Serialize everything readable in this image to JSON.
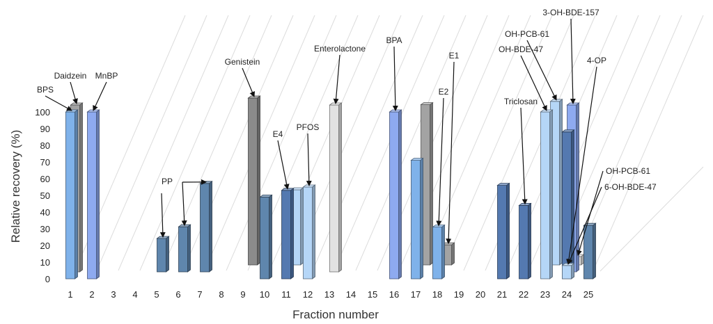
{
  "chart_data": {
    "type": "bar",
    "style": "3d-columns-staggered-depth",
    "xlabel": "Fraction number",
    "ylabel": "Relative recovery (%)",
    "ylim": [
      0,
      100
    ],
    "yticks": [
      0,
      10,
      20,
      30,
      40,
      50,
      60,
      70,
      80,
      90,
      100
    ],
    "categories": [
      "1",
      "2",
      "3",
      "4",
      "5",
      "6",
      "7",
      "8",
      "9",
      "10",
      "11",
      "12",
      "13",
      "14",
      "15",
      "16",
      "17",
      "18",
      "19",
      "20",
      "21",
      "22",
      "23",
      "24",
      "25"
    ],
    "grid": true,
    "colors": {
      "blue": "#7fb2ea",
      "darkblue": "#5479b0",
      "steel": "#5f86ad",
      "periwinkle": "#8eaaf0",
      "lightblue": "#b5d6f7",
      "gray": "#a3a3a3",
      "darkgray": "#8b8b8b",
      "lightgray": "#e2e2e2"
    },
    "bars": [
      {
        "fraction": 1,
        "depth": 0,
        "value": 100,
        "color": "blue"
      },
      {
        "fraction": 1,
        "depth": 1,
        "value": 100,
        "color": "gray"
      },
      {
        "fraction": 2,
        "depth": 0,
        "value": 100,
        "color": "periwinkle"
      },
      {
        "fraction": 5,
        "depth": 1,
        "value": 20,
        "color": "steel"
      },
      {
        "fraction": 6,
        "depth": 1,
        "value": 27,
        "color": "steel"
      },
      {
        "fraction": 7,
        "depth": 1,
        "value": 53,
        "color": "steel"
      },
      {
        "fraction": 9,
        "depth": 2,
        "value": 100,
        "color": "darkgray"
      },
      {
        "fraction": 10,
        "depth": 0,
        "value": 49,
        "color": "steel"
      },
      {
        "fraction": 11,
        "depth": 0,
        "value": 53,
        "color": "darkblue"
      },
      {
        "fraction": 11,
        "depth": 2,
        "value": 45,
        "color": "lightblue"
      },
      {
        "fraction": 12,
        "depth": 0,
        "value": 55,
        "color": "lightblue"
      },
      {
        "fraction": 13,
        "depth": 1,
        "value": 100,
        "color": "lightgray"
      },
      {
        "fraction": 16,
        "depth": 0,
        "value": 100,
        "color": "periwinkle"
      },
      {
        "fraction": 17,
        "depth": 0,
        "value": 71,
        "color": "blue"
      },
      {
        "fraction": 17,
        "depth": 2,
        "value": 96,
        "color": "gray"
      },
      {
        "fraction": 18,
        "depth": 0,
        "value": 31,
        "color": "blue"
      },
      {
        "fraction": 18,
        "depth": 2,
        "value": 12,
        "color": "gray"
      },
      {
        "fraction": 21,
        "depth": 0,
        "value": 56,
        "color": "darkblue"
      },
      {
        "fraction": 22,
        "depth": 0,
        "value": 44,
        "color": "darkblue"
      },
      {
        "fraction": 23,
        "depth": 0,
        "value": 100,
        "color": "lightblue"
      },
      {
        "fraction": 23,
        "depth": 2,
        "value": 98,
        "color": "lightblue"
      },
      {
        "fraction": 24,
        "depth": 0,
        "value": 88,
        "color": "darkblue"
      },
      {
        "fraction": 24,
        "depth": 1,
        "value": 100,
        "color": "periwinkle"
      },
      {
        "fraction": 24,
        "depth": 0,
        "value": 8,
        "color": "lightblue"
      },
      {
        "fraction": 24,
        "depth": 2,
        "value": 5,
        "color": "lightgray"
      },
      {
        "fraction": 25,
        "depth": 0,
        "value": 32,
        "color": "steel"
      }
    ],
    "annotations": [
      {
        "text": "BPS",
        "fraction": 1,
        "depth": 0
      },
      {
        "text": "Daidzein",
        "fraction": 1,
        "depth": 1
      },
      {
        "text": "MnBP",
        "fraction": 2,
        "depth": 0
      },
      {
        "text": "PP",
        "fraction": 6,
        "depth": 1
      },
      {
        "text": "Genistein",
        "fraction": 9,
        "depth": 2
      },
      {
        "text": "E4",
        "fraction": 11,
        "depth": 0
      },
      {
        "text": "PFOS",
        "fraction": 12,
        "depth": 0
      },
      {
        "text": "Enterolactone",
        "fraction": 13,
        "depth": 1
      },
      {
        "text": "BPA",
        "fraction": 16,
        "depth": 0
      },
      {
        "text": "E1",
        "fraction": 18,
        "depth": 2
      },
      {
        "text": "E2",
        "fraction": 18,
        "depth": 0
      },
      {
        "text": "Triclosan",
        "fraction": 22,
        "depth": 0
      },
      {
        "text": "3-OH-BDE-157",
        "fraction": 24,
        "depth": 1
      },
      {
        "text": "OH-PCB-61",
        "fraction": 23,
        "depth": 2
      },
      {
        "text": "OH-BDE-47",
        "fraction": 23,
        "depth": 0
      },
      {
        "text": "4-OP",
        "fraction": 24,
        "depth": 0
      },
      {
        "text": "OH-PCB-61",
        "fraction": 24,
        "depth": 2
      },
      {
        "text": "6-OH-BDE-47",
        "fraction": 24,
        "depth": 0
      }
    ]
  }
}
